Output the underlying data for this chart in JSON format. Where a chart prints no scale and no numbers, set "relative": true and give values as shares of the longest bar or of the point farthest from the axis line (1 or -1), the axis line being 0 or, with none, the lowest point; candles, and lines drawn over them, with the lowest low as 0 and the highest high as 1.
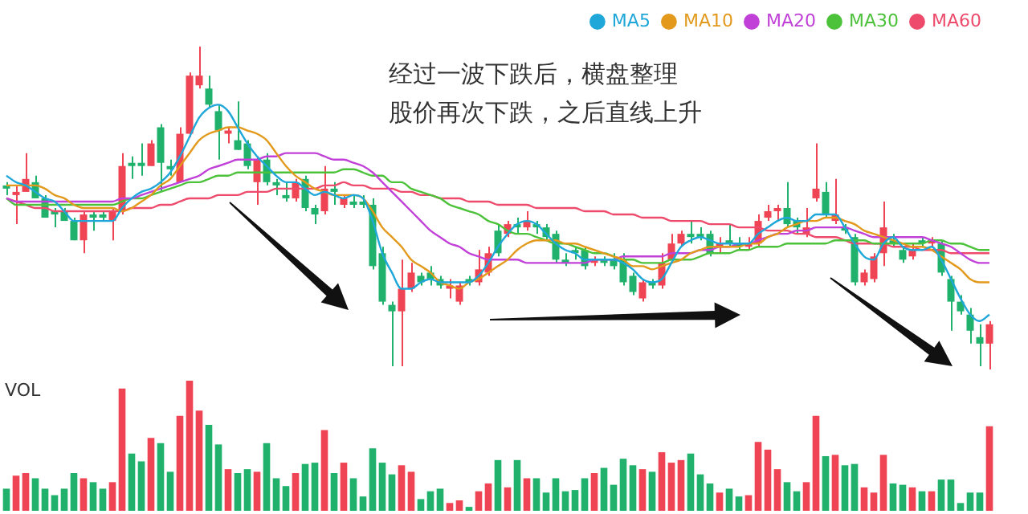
{
  "chart_data": [
    {
      "type": "candlestick",
      "relative": true,
      "legend": "top right",
      "colors": [
        "#20b26c",
        "#ef4453",
        "#ef4453",
        "#20b26c",
        "#20b26c",
        "#20b26c",
        "#20b26c",
        "#20b26c",
        "#ef4453",
        "#20b26c",
        "#20b26c",
        "#ef4453",
        "#ef4453",
        "#20b26c",
        "#20b26c",
        "#ef4453",
        "#20b26c",
        "#20b26c",
        "#ef4453",
        "#ef4453",
        "#ef4453",
        "#20b26c",
        "#20b26c",
        "#ef4453",
        "#20b26c",
        "#20b26c",
        "#ef4453",
        "#20b26c",
        "#20b26c",
        "#20b26c",
        "#ef4453",
        "#20b26c",
        "#20b26c",
        "#ef4453",
        "#20b26c",
        "#ef4453",
        "#20b26c",
        "#20b26c",
        "#20b26c",
        "#20b26c",
        "#20b26c",
        "#ef4453",
        "#ef4453",
        "#20b26c",
        "#20b26c",
        "#20b26c",
        "#ef4453",
        "#ef4453",
        "#20b26c",
        "#ef4453",
        "#ef4453",
        "#20b26c",
        "#ef4453",
        "#20b26c",
        "#ef4453",
        "#20b26c",
        "#20b26c",
        "#20b26c",
        "#20b26c",
        "#20b26c",
        "#20b26c",
        "#ef4453",
        "#20b26c",
        "#20b26c",
        "#20b26c",
        "#20b26c",
        "#ef4453",
        "#20b26c",
        "#ef4453",
        "#ef4453",
        "#ef4453",
        "#20b26c",
        "#20b26c",
        "#20b26c",
        "#ef4453",
        "#20b26c",
        "#20b26c",
        "#ef4453",
        "#ef4453",
        "#ef4453",
        "#ef4453",
        "#20b26c",
        "#20b26c",
        "#ef4453",
        "#ef4453",
        "#20b26c",
        "#ef4453",
        "#20b26c",
        "#20b26c",
        "#ef4453",
        "#ef4453",
        "#ef4453",
        "#20b26c",
        "#20b26c",
        "#ef4453",
        "#20b26c",
        "#ef4453",
        "#20b26c",
        "#20b26c",
        "#20b26c",
        "#20b26c",
        "#20b26c",
        "#ef4453"
      ],
      "annotations": [
        "经过一波下跌后，横盘整理",
        "股价再次下跌，之后直线上升"
      ],
      "categories": [
        null,
        null,
        null,
        null,
        null,
        null,
        null,
        null,
        null,
        null,
        null,
        null,
        null,
        null,
        null,
        null,
        null,
        null,
        null,
        null,
        null,
        null,
        null,
        null,
        null,
        null,
        null,
        null,
        null,
        null,
        null,
        null,
        null,
        null,
        null,
        null,
        null,
        null,
        null,
        null,
        null,
        null,
        null,
        null,
        null,
        null,
        null,
        null,
        null,
        null,
        null,
        null,
        null,
        null,
        null,
        null,
        null,
        null,
        null,
        null,
        null,
        null,
        null,
        null,
        null,
        null,
        null,
        null,
        null,
        null,
        null,
        null,
        null,
        null,
        null,
        null,
        null,
        null,
        null,
        null,
        null,
        null,
        null,
        null,
        null,
        null,
        null,
        null,
        null,
        null,
        null,
        null,
        null,
        null,
        null,
        null,
        null,
        null,
        null,
        null,
        null,
        null,
        null
      ],
      "ohlc": [
        [
          0.57,
          0.58,
          0.54,
          0.56
        ],
        [
          0.54,
          0.57,
          0.45,
          0.55
        ],
        [
          0.55,
          0.67,
          0.55,
          0.59
        ],
        [
          0.58,
          0.6,
          0.53,
          0.53
        ],
        [
          0.53,
          0.54,
          0.47,
          0.47
        ],
        [
          0.49,
          0.5,
          0.44,
          0.48
        ],
        [
          0.49,
          0.5,
          0.46,
          0.46
        ],
        [
          0.46,
          0.47,
          0.4,
          0.4
        ],
        [
          0.4,
          0.49,
          0.36,
          0.48
        ],
        [
          0.48,
          0.49,
          0.43,
          0.47
        ],
        [
          0.48,
          0.49,
          0.46,
          0.47
        ],
        [
          0.46,
          0.5,
          0.4,
          0.49
        ],
        [
          0.49,
          0.67,
          0.48,
          0.63
        ],
        [
          0.64,
          0.66,
          0.59,
          0.63
        ],
        [
          0.64,
          0.7,
          0.6,
          0.63
        ],
        [
          0.63,
          0.71,
          0.63,
          0.7
        ],
        [
          0.75,
          0.76,
          0.55,
          0.64
        ],
        [
          0.63,
          0.65,
          0.6,
          0.62
        ],
        [
          0.58,
          0.75,
          0.58,
          0.73
        ],
        [
          0.73,
          0.92,
          0.72,
          0.91
        ],
        [
          0.88,
          1,
          0.87,
          0.91
        ],
        [
          0.87,
          0.91,
          0.81,
          0.82
        ],
        [
          0.8,
          0.82,
          0.65,
          0.74
        ],
        [
          0.73,
          0.75,
          0.7,
          0.74
        ],
        [
          0.71,
          0.83,
          0.68,
          0.68
        ],
        [
          0.7,
          0.71,
          0.62,
          0.63
        ],
        [
          0.58,
          0.66,
          0.51,
          0.65
        ],
        [
          0.65,
          0.67,
          0.57,
          0.58
        ],
        [
          0.58,
          0.59,
          0.54,
          0.57
        ],
        [
          0.54,
          0.58,
          0.52,
          0.53
        ],
        [
          0.53,
          0.59,
          0.52,
          0.58
        ],
        [
          0.59,
          0.6,
          0.49,
          0.5
        ],
        [
          0.5,
          0.51,
          0.45,
          0.48
        ],
        [
          0.49,
          0.63,
          0.48,
          0.56
        ],
        [
          0.56,
          0.58,
          0.51,
          0.55
        ],
        [
          0.51,
          0.54,
          0.5,
          0.53
        ],
        [
          0.52,
          0.54,
          0.5,
          0.51
        ],
        [
          0.52,
          0.54,
          0.5,
          0.51
        ],
        [
          0.51,
          0.53,
          0.31,
          0.32
        ],
        [
          0.36,
          0.38,
          0.2,
          0.21
        ],
        [
          0.2,
          0.21,
          0.01,
          0.18
        ],
        [
          0.18,
          0.34,
          0.01,
          0.25
        ],
        [
          0.25,
          0.33,
          0.24,
          0.3
        ],
        [
          0.29,
          0.3,
          0.26,
          0.27
        ],
        [
          0.3,
          0.32,
          0.26,
          0.28
        ],
        [
          0.28,
          0.29,
          0.25,
          0.26
        ],
        [
          0.25,
          0.28,
          0.22,
          0.26
        ],
        [
          0.21,
          0.27,
          0.2,
          0.26
        ],
        [
          0.28,
          0.29,
          0.26,
          0.27
        ],
        [
          0.27,
          0.37,
          0.26,
          0.31
        ],
        [
          0.3,
          0.38,
          0.29,
          0.36
        ],
        [
          0.43,
          0.45,
          0.35,
          0.36
        ],
        [
          0.42,
          0.46,
          0.41,
          0.45
        ],
        [
          0.45,
          0.47,
          0.42,
          0.44
        ],
        [
          0.44,
          0.49,
          0.43,
          0.46
        ],
        [
          0.45,
          0.46,
          0.42,
          0.44
        ],
        [
          0.44,
          0.45,
          0.4,
          0.41
        ],
        [
          0.42,
          0.43,
          0.33,
          0.34
        ],
        [
          0.34,
          0.36,
          0.32,
          0.33
        ],
        [
          0.37,
          0.38,
          0.34,
          0.36
        ],
        [
          0.37,
          0.38,
          0.31,
          0.32
        ],
        [
          0.33,
          0.35,
          0.32,
          0.34
        ],
        [
          0.34,
          0.35,
          0.32,
          0.33
        ],
        [
          0.34,
          0.36,
          0.31,
          0.32
        ],
        [
          0.34,
          0.36,
          0.26,
          0.27
        ],
        [
          0.29,
          0.3,
          0.23,
          0.24
        ],
        [
          0.22,
          0.28,
          0.21,
          0.27
        ],
        [
          0.27,
          0.28,
          0.25,
          0.26
        ],
        [
          0.26,
          0.36,
          0.25,
          0.33
        ],
        [
          0.34,
          0.42,
          0.33,
          0.39
        ],
        [
          0.39,
          0.43,
          0.38,
          0.42
        ],
        [
          0.42,
          0.46,
          0.39,
          0.41
        ],
        [
          0.42,
          0.44,
          0.4,
          0.41
        ],
        [
          0.42,
          0.43,
          0.35,
          0.36
        ],
        [
          0.38,
          0.41,
          0.36,
          0.39
        ],
        [
          0.4,
          0.45,
          0.38,
          0.39
        ],
        [
          0.39,
          0.41,
          0.37,
          0.38
        ],
        [
          0.38,
          0.41,
          0.37,
          0.39
        ],
        [
          0.39,
          0.48,
          0.38,
          0.46
        ],
        [
          0.47,
          0.51,
          0.46,
          0.49
        ],
        [
          0.49,
          0.51,
          0.46,
          0.5
        ],
        [
          0.5,
          0.58,
          0.44,
          0.45
        ],
        [
          0.46,
          0.47,
          0.42,
          0.44
        ],
        [
          0.42,
          0.5,
          0.41,
          0.44
        ],
        [
          0.53,
          0.7,
          0.52,
          0.56
        ],
        [
          0.55,
          0.58,
          0.47,
          0.48
        ],
        [
          0.46,
          0.59,
          0.45,
          0.48
        ],
        [
          0.44,
          0.45,
          0.42,
          0.43
        ],
        [
          0.41,
          0.42,
          0.26,
          0.27
        ],
        [
          0.27,
          0.31,
          0.26,
          0.3
        ],
        [
          0.28,
          0.36,
          0.27,
          0.35
        ],
        [
          0.36,
          0.52,
          0.32,
          0.44
        ],
        [
          0.4,
          0.42,
          0.38,
          0.39
        ],
        [
          0.37,
          0.38,
          0.33,
          0.34
        ],
        [
          0.35,
          0.39,
          0.34,
          0.37
        ],
        [
          0.4,
          0.41,
          0.38,
          0.39
        ],
        [
          0.39,
          0.41,
          0.38,
          0.4
        ],
        [
          0.39,
          0.4,
          0.29,
          0.3
        ],
        [
          0.28,
          0.29,
          0.12,
          0.21
        ],
        [
          0.21,
          0.23,
          0.17,
          0.18
        ],
        [
          0.17,
          0.19,
          0.08,
          0.12
        ],
        [
          0.1,
          0.14,
          0.01,
          0.08
        ],
        [
          0.08,
          0.15,
          0,
          0.14
        ]
      ],
      "series": [
        {
          "type": "line",
          "name": "MA5",
          "color": "#1ea7d8",
          "values": [
            0.6,
            0.58,
            0.57,
            0.55,
            0.53,
            0.52,
            0.49,
            0.46,
            0.46,
            0.46,
            0.46,
            0.46,
            0.5,
            0.53,
            0.55,
            0.56,
            0.58,
            0.61,
            0.66,
            0.72,
            0.78,
            0.81,
            0.82,
            0.8,
            0.75,
            0.7,
            0.66,
            0.63,
            0.6,
            0.58,
            0.58,
            0.56,
            0.54,
            0.55,
            0.54,
            0.53,
            0.54,
            0.53,
            0.46,
            0.36,
            0.3,
            0.25,
            0.25,
            0.27,
            0.28,
            0.27,
            0.27,
            0.27,
            0.27,
            0.29,
            0.33,
            0.38,
            0.42,
            0.45,
            0.46,
            0.45,
            0.42,
            0.39,
            0.37,
            0.36,
            0.34,
            0.34,
            0.34,
            0.34,
            0.33,
            0.31,
            0.28,
            0.27,
            0.28,
            0.33,
            0.38,
            0.4,
            0.41,
            0.4,
            0.39,
            0.39,
            0.39,
            0.39,
            0.42,
            0.44,
            0.46,
            0.47,
            0.46,
            0.46,
            0.48,
            0.48,
            0.48,
            0.44,
            0.39,
            0.35,
            0.34,
            0.39,
            0.41,
            0.38,
            0.37,
            0.37,
            0.38,
            0.34,
            0.28,
            0.22,
            0.17,
            0.15,
            0.17
          ]
        },
        {
          "type": "line",
          "name": "MA10",
          "color": "#e2991c",
          "values": [
            0.57,
            0.57,
            0.57,
            0.57,
            0.56,
            0.54,
            0.53,
            0.51,
            0.5,
            0.5,
            0.5,
            0.5,
            0.49,
            0.5,
            0.52,
            0.54,
            0.57,
            0.59,
            0.63,
            0.67,
            0.71,
            0.73,
            0.74,
            0.75,
            0.75,
            0.74,
            0.73,
            0.71,
            0.67,
            0.63,
            0.6,
            0.58,
            0.56,
            0.55,
            0.54,
            0.54,
            0.54,
            0.53,
            0.49,
            0.44,
            0.41,
            0.38,
            0.34,
            0.32,
            0.3,
            0.27,
            0.26,
            0.25,
            0.27,
            0.28,
            0.3,
            0.32,
            0.34,
            0.37,
            0.39,
            0.4,
            0.4,
            0.4,
            0.39,
            0.39,
            0.38,
            0.37,
            0.36,
            0.35,
            0.34,
            0.32,
            0.32,
            0.31,
            0.32,
            0.33,
            0.34,
            0.36,
            0.37,
            0.38,
            0.38,
            0.38,
            0.38,
            0.39,
            0.39,
            0.41,
            0.42,
            0.44,
            0.45,
            0.46,
            0.46,
            0.47,
            0.47,
            0.46,
            0.45,
            0.43,
            0.42,
            0.41,
            0.4,
            0.39,
            0.38,
            0.38,
            0.37,
            0.35,
            0.33,
            0.31,
            0.28,
            0.27,
            0.27
          ]
        },
        {
          "type": "line",
          "name": "MA20",
          "color": "#c040d8",
          "values": [
            0.53,
            0.52,
            0.52,
            0.52,
            0.52,
            0.52,
            0.52,
            0.52,
            0.52,
            0.52,
            0.52,
            0.52,
            0.53,
            0.53,
            0.54,
            0.55,
            0.56,
            0.57,
            0.58,
            0.59,
            0.6,
            0.62,
            0.63,
            0.64,
            0.65,
            0.65,
            0.65,
            0.66,
            0.66,
            0.67,
            0.67,
            0.67,
            0.67,
            0.66,
            0.65,
            0.65,
            0.64,
            0.63,
            0.61,
            0.58,
            0.55,
            0.52,
            0.49,
            0.46,
            0.43,
            0.41,
            0.39,
            0.38,
            0.36,
            0.35,
            0.34,
            0.34,
            0.34,
            0.34,
            0.33,
            0.33,
            0.33,
            0.33,
            0.33,
            0.33,
            0.33,
            0.34,
            0.34,
            0.34,
            0.35,
            0.35,
            0.35,
            0.35,
            0.35,
            0.36,
            0.36,
            0.36,
            0.37,
            0.37,
            0.38,
            0.38,
            0.39,
            0.39,
            0.4,
            0.41,
            0.42,
            0.42,
            0.43,
            0.43,
            0.44,
            0.44,
            0.44,
            0.44,
            0.43,
            0.42,
            0.41,
            0.41,
            0.41,
            0.41,
            0.41,
            0.41,
            0.4,
            0.39,
            0.38,
            0.36,
            0.34,
            0.33,
            0.33
          ]
        },
        {
          "type": "line",
          "name": "MA30",
          "color": "#4cc23a",
          "values": [
            0.53,
            0.51,
            0.51,
            0.51,
            0.51,
            0.51,
            0.51,
            0.51,
            0.51,
            0.51,
            0.51,
            0.51,
            0.52,
            0.53,
            0.53,
            0.54,
            0.55,
            0.56,
            0.57,
            0.58,
            0.58,
            0.59,
            0.6,
            0.6,
            0.61,
            0.61,
            0.61,
            0.61,
            0.61,
            0.61,
            0.61,
            0.61,
            0.61,
            0.61,
            0.61,
            0.62,
            0.62,
            0.61,
            0.6,
            0.6,
            0.58,
            0.58,
            0.56,
            0.55,
            0.54,
            0.53,
            0.51,
            0.5,
            0.49,
            0.48,
            0.46,
            0.45,
            0.43,
            0.42,
            0.42,
            0.41,
            0.4,
            0.39,
            0.39,
            0.38,
            0.37,
            0.36,
            0.36,
            0.35,
            0.34,
            0.34,
            0.33,
            0.33,
            0.33,
            0.34,
            0.34,
            0.34,
            0.35,
            0.36,
            0.36,
            0.36,
            0.37,
            0.37,
            0.38,
            0.38,
            0.38,
            0.39,
            0.39,
            0.39,
            0.39,
            0.39,
            0.4,
            0.4,
            0.4,
            0.4,
            0.39,
            0.39,
            0.39,
            0.39,
            0.39,
            0.39,
            0.4,
            0.4,
            0.39,
            0.39,
            0.38,
            0.37,
            0.37
          ]
        },
        {
          "type": "line",
          "name": "MA60",
          "color": "#ee4a6c",
          "values": [
            0.53,
            0.52,
            0.51,
            0.5,
            0.5,
            0.49,
            0.49,
            0.49,
            0.49,
            0.49,
            0.49,
            0.49,
            0.49,
            0.5,
            0.5,
            0.5,
            0.51,
            0.51,
            0.52,
            0.53,
            0.53,
            0.53,
            0.54,
            0.54,
            0.54,
            0.55,
            0.55,
            0.55,
            0.56,
            0.56,
            0.56,
            0.56,
            0.56,
            0.57,
            0.57,
            0.58,
            0.57,
            0.57,
            0.56,
            0.56,
            0.56,
            0.55,
            0.55,
            0.54,
            0.54,
            0.53,
            0.53,
            0.53,
            0.52,
            0.52,
            0.52,
            0.51,
            0.51,
            0.51,
            0.51,
            0.5,
            0.5,
            0.5,
            0.5,
            0.5,
            0.49,
            0.49,
            0.49,
            0.48,
            0.48,
            0.48,
            0.47,
            0.47,
            0.47,
            0.46,
            0.46,
            0.46,
            0.46,
            0.45,
            0.45,
            0.45,
            0.44,
            0.44,
            0.44,
            0.43,
            0.43,
            0.43,
            0.42,
            0.42,
            0.41,
            0.41,
            0.41,
            0.4,
            0.39,
            0.39,
            0.39,
            0.39,
            0.38,
            0.38,
            0.38,
            0.37,
            0.37,
            0.37,
            0.36,
            0.36,
            0.36,
            0.36,
            0.36
          ]
        }
      ]
    },
    {
      "type": "bar",
      "relative": true,
      "title": "VOL",
      "categories": [
        null,
        null,
        null,
        null,
        null,
        null,
        null,
        null,
        null,
        null,
        null,
        null,
        null,
        null,
        null,
        null,
        null,
        null,
        null,
        null,
        null,
        null,
        null,
        null,
        null,
        null,
        null,
        null,
        null,
        null,
        null,
        null,
        null,
        null,
        null,
        null,
        null,
        null,
        null,
        null,
        null,
        null,
        null,
        null,
        null,
        null,
        null,
        null,
        null,
        null,
        null,
        null,
        null,
        null,
        null,
        null,
        null,
        null,
        null,
        null,
        null,
        null,
        null,
        null,
        null,
        null,
        null,
        null,
        null,
        null,
        null,
        null,
        null,
        null,
        null,
        null,
        null,
        null,
        null,
        null,
        null,
        null,
        null,
        null,
        null,
        null,
        null,
        null,
        null,
        null,
        null,
        null,
        null,
        null,
        null,
        null,
        null,
        null,
        null,
        null,
        null,
        null,
        null
      ],
      "values": [
        0.17,
        0.27,
        0.29,
        0.25,
        0.17,
        0.12,
        0.17,
        0.29,
        0.25,
        0.22,
        0.17,
        0.22,
        0.94,
        0.44,
        0.38,
        0.56,
        0.52,
        0.3,
        0.73,
        1,
        0.77,
        0.66,
        0.51,
        0.32,
        0.29,
        0.32,
        0.3,
        0.52,
        0.25,
        0.19,
        0.29,
        0.36,
        0.37,
        0.62,
        0.29,
        0.37,
        0.25,
        0.11,
        0.48,
        0.37,
        0.28,
        0.35,
        0.3,
        0.09,
        0.15,
        0.17,
        0.06,
        0.08,
        0.03,
        0.15,
        0.21,
        0.39,
        0.18,
        0.39,
        0.25,
        0.25,
        0.14,
        0.25,
        0.15,
        0.16,
        0.25,
        0.29,
        0.33,
        0.2,
        0.4,
        0.35,
        0.32,
        0.3,
        0.45,
        0.37,
        0.39,
        0.44,
        0.28,
        0.21,
        0.14,
        0.17,
        0.11,
        0.12,
        0.53,
        0.47,
        0.32,
        0.22,
        0.15,
        0.22,
        0.73,
        0.42,
        0.43,
        0.35,
        0.36,
        0.18,
        0.14,
        0.43,
        0.21,
        0.2,
        0.18,
        0.15,
        0.15,
        0.24,
        0.24,
        0.06,
        0.14,
        0.14,
        0.65
      ],
      "colors": [
        "#20b26c",
        "#ef4453",
        "#ef4453",
        "#20b26c",
        "#20b26c",
        "#20b26c",
        "#20b26c",
        "#20b26c",
        "#ef4453",
        "#20b26c",
        "#20b26c",
        "#ef4453",
        "#ef4453",
        "#20b26c",
        "#20b26c",
        "#ef4453",
        "#20b26c",
        "#20b26c",
        "#ef4453",
        "#ef4453",
        "#ef4453",
        "#20b26c",
        "#20b26c",
        "#ef4453",
        "#20b26c",
        "#20b26c",
        "#ef4453",
        "#20b26c",
        "#20b26c",
        "#20b26c",
        "#ef4453",
        "#20b26c",
        "#20b26c",
        "#ef4453",
        "#20b26c",
        "#ef4453",
        "#20b26c",
        "#20b26c",
        "#20b26c",
        "#20b26c",
        "#20b26c",
        "#ef4453",
        "#ef4453",
        "#20b26c",
        "#20b26c",
        "#20b26c",
        "#ef4453",
        "#ef4453",
        "#20b26c",
        "#ef4453",
        "#ef4453",
        "#20b26c",
        "#ef4453",
        "#20b26c",
        "#ef4453",
        "#20b26c",
        "#20b26c",
        "#20b26c",
        "#20b26c",
        "#20b26c",
        "#20b26c",
        "#ef4453",
        "#20b26c",
        "#20b26c",
        "#20b26c",
        "#20b26c",
        "#ef4453",
        "#20b26c",
        "#ef4453",
        "#ef4453",
        "#ef4453",
        "#20b26c",
        "#20b26c",
        "#20b26c",
        "#ef4453",
        "#20b26c",
        "#20b26c",
        "#ef4453",
        "#ef4453",
        "#ef4453",
        "#ef4453",
        "#20b26c",
        "#20b26c",
        "#ef4453",
        "#ef4453",
        "#20b26c",
        "#ef4453",
        "#20b26c",
        "#20b26c",
        "#ef4453",
        "#ef4453",
        "#ef4453",
        "#20b26c",
        "#20b26c",
        "#ef4453",
        "#20b26c",
        "#ef4453",
        "#20b26c",
        "#20b26c",
        "#20b26c",
        "#20b26c",
        "#20b26c",
        "#ef4453"
      ]
    }
  ]
}
